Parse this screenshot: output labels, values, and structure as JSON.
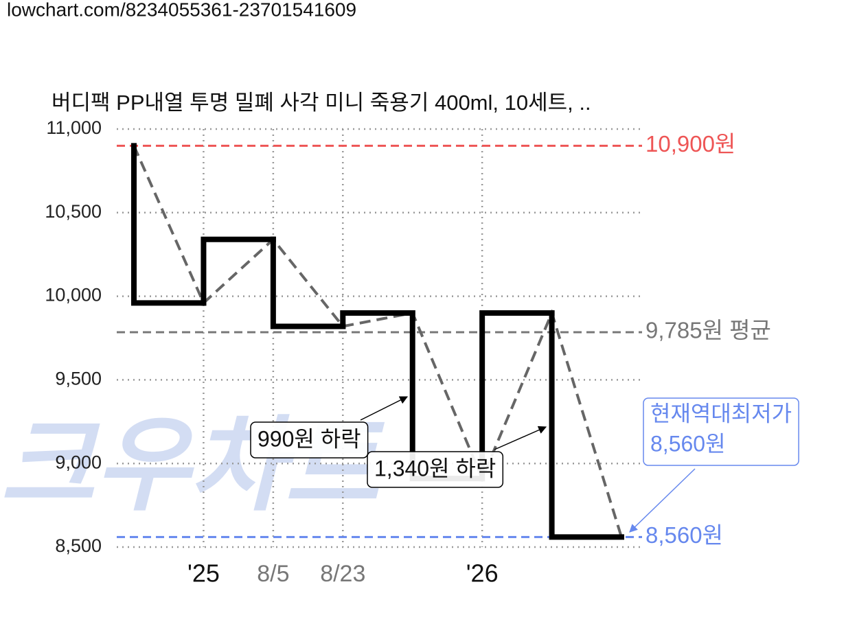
{
  "url": "lowchart.com/8234055361-23701541609",
  "watermark": "크우차트",
  "chart_data": {
    "type": "step",
    "title": "버디팩 PP내열 투명 밀폐 사각 미니 죽용기 400ml, 10세트, ..",
    "categories": [
      null,
      "'25",
      "8/5",
      "8/23",
      null,
      "'26",
      null,
      null
    ],
    "values": [
      10900,
      9960,
      10340,
      9820,
      9900,
      8910,
      9900,
      8560
    ],
    "color": "#000000",
    "trend_color": "#666666",
    "ylim": [
      8500,
      11000
    ],
    "yticks": [
      {
        "value": 8500,
        "label": "8,500"
      },
      {
        "value": 9000,
        "label": "9,000"
      },
      {
        "value": 9500,
        "label": "9,500"
      },
      {
        "value": 10000,
        "label": "10,000"
      },
      {
        "value": 10500,
        "label": "10,500"
      },
      {
        "value": 11000,
        "label": "11,000"
      }
    ],
    "grid": true,
    "reference_lines": [
      {
        "value": 10900,
        "label": "10,900원",
        "color": "#ee5555"
      },
      {
        "value": 9785,
        "label": "9,785원 평균",
        "color": "#777777"
      },
      {
        "value": 8560,
        "label": "8,560원",
        "color": "#6688ee"
      }
    ],
    "annotations": [
      {
        "text": "990원 하락"
      },
      {
        "text": "1,340원 하락"
      }
    ],
    "callout": {
      "lines": [
        "현재역대최저가",
        "8,560원"
      ],
      "color": "#6688ee"
    }
  }
}
